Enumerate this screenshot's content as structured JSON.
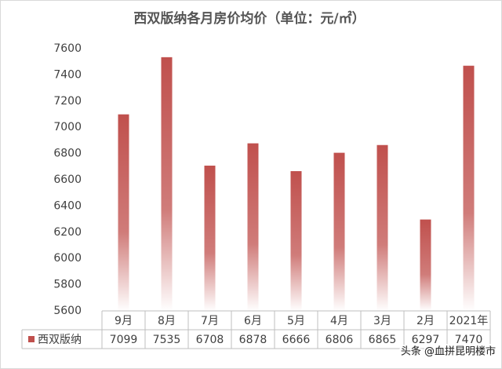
{
  "chart_data": {
    "type": "bar",
    "title": "西双版纳各月房价均价（单位：元/㎡）",
    "categories": [
      "9月",
      "8月",
      "7月",
      "6月",
      "5月",
      "4月",
      "3月",
      "2月",
      "2021年"
    ],
    "series": [
      {
        "name": "西双版纳",
        "color": "#c0504d",
        "values": [
          7099,
          7535,
          6708,
          6878,
          6666,
          6806,
          6865,
          6297,
          7470
        ]
      }
    ],
    "ylim": [
      5600,
      7600
    ],
    "yticks": [
      5600,
      5800,
      6000,
      6200,
      6400,
      6600,
      6800,
      7000,
      7200,
      7400,
      7600
    ],
    "grid": false,
    "watermark": "头条 @血拼昆明楼市"
  }
}
